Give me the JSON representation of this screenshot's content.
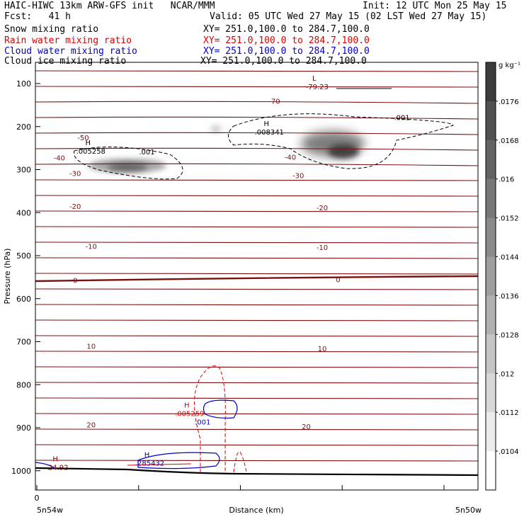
{
  "header": {
    "model_line": "HAIC-HIWC 13km ARW-GFS init   NCAR/MMM",
    "init": "Init: 12 UTC Mon 25 May 15",
    "fcst": "Fcst:   41 h",
    "valid": "Valid: 05 UTC Wed 27 May 15 (02 LST Wed 27 May 15)",
    "fields": [
      {
        "name": "Snow mixing ratio",
        "xy": "XY= 251.0,100.0 to 284.7,100.0",
        "color": "#000000"
      },
      {
        "name": "Rain water mixing ratio",
        "xy": "XY= 251.0,100.0 to 284.7,100.0",
        "color": "#dd0000"
      },
      {
        "name": "Cloud water mixing ratio",
        "xy": "XY= 251.0,100.0 to 284.7,100.0",
        "color": "#0000cc"
      },
      {
        "name": "Cloud ice mixing ratio",
        "xy": "XY= 251.0,100.0 to 284.7,100.0",
        "color": "#000000"
      }
    ]
  },
  "chart_data": {
    "type": "line",
    "title": "",
    "xlabel": "Distance (km)",
    "ylabel": "Pressure (hPa)",
    "x_start_label": "5n54w",
    "x_end_label": "5n50w",
    "x_zero_label": "0",
    "yticks": [
      100,
      200,
      300,
      400,
      500,
      600,
      700,
      800,
      900,
      1000
    ],
    "ylim": [
      1060,
      50
    ],
    "grid": false,
    "legend": "right colorbar",
    "colorbar": {
      "unit_label": "g kg⁻¹",
      "ticks": [
        ".0176",
        ".0168",
        ".016",
        ".0152",
        ".0144",
        ".0136",
        ".0128",
        ".012",
        ".0112",
        ".0104"
      ]
    },
    "temperature_labels": [
      {
        "text": "-70",
        "x": 0.3,
        "p": 140
      },
      {
        "text": "-50",
        "x": 0.06,
        "p": 225
      },
      {
        "text": "-40",
        "x": 0.03,
        "p": 272
      },
      {
        "text": "-40",
        "x": 0.32,
        "p": 270
      },
      {
        "text": "-30",
        "x": 0.05,
        "p": 308
      },
      {
        "text": "-30",
        "x": 0.33,
        "p": 313
      },
      {
        "text": "-20",
        "x": 0.05,
        "p": 385
      },
      {
        "text": "-20",
        "x": 0.36,
        "p": 388
      },
      {
        "text": "-10",
        "x": 0.07,
        "p": 478
      },
      {
        "text": "-10",
        "x": 0.36,
        "p": 480
      },
      {
        "text": "0",
        "x": 0.05,
        "p": 557
      },
      {
        "text": "0",
        "x": 0.38,
        "p": 555
      },
      {
        "text": "10",
        "x": 0.07,
        "p": 710
      },
      {
        "text": "10",
        "x": 0.36,
        "p": 716
      },
      {
        "text": "20",
        "x": 0.07,
        "p": 893
      },
      {
        "text": "20",
        "x": 0.34,
        "p": 897
      }
    ],
    "extrema": [
      {
        "type": "L",
        "value": "-79.23",
        "x": 0.35,
        "p": 100,
        "color": "#800000"
      },
      {
        "type": "H",
        "value": ".005258",
        "x": 0.066,
        "p": 250,
        "color": "#000000"
      },
      {
        "type": "H",
        "value": ".008341",
        "x": 0.29,
        "p": 205,
        "color": "#000000"
      },
      {
        "type": "H",
        "value": ".005259",
        "x": 0.19,
        "p": 860,
        "color": "#dd0000"
      },
      {
        "type": "H",
        "value": ".285432",
        "x": 0.14,
        "p": 975,
        "color": "#0000cc"
      },
      {
        "type": "H",
        "value": "24.92",
        "x": 0.025,
        "p": 985,
        "color": "#800000"
      }
    ],
    "contour_values": [
      {
        "text": ".001",
        "x": 0.14,
        "p": 258,
        "color": "#000000"
      },
      {
        "text": ".001",
        "x": 0.46,
        "p": 178,
        "color": "#000000"
      },
      {
        "text": ".001",
        "x": 0.21,
        "p": 886,
        "color": "#0000cc"
      }
    ],
    "series": [
      {
        "name": "Snow mixing ratio",
        "color": "#000000"
      },
      {
        "name": "Rain water mixing ratio",
        "color": "#dd0000"
      },
      {
        "name": "Cloud water mixing ratio",
        "color": "#0000cc"
      },
      {
        "name": "Cloud ice mixing ratio",
        "color": "#000000"
      }
    ]
  }
}
